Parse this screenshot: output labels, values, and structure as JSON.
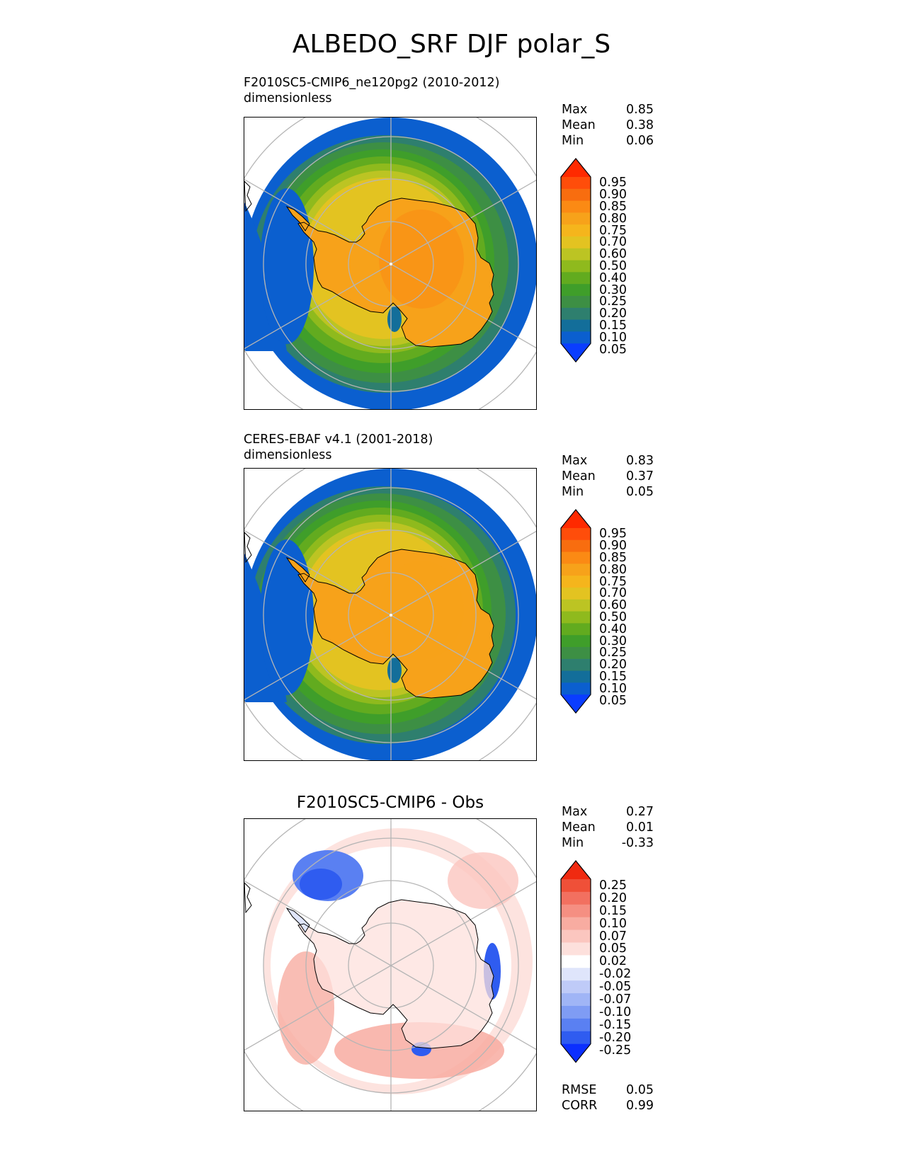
{
  "title": "ALBEDO_SRF DJF polar_S",
  "panels": [
    {
      "subtitle_line1": "F2010SC5-CMIP6_ne120pg2 (2010-2012)",
      "subtitle_line2": "dimensionless",
      "stats": [
        {
          "label": "Max",
          "value": "0.85"
        },
        {
          "label": "Mean",
          "value": "0.38"
        },
        {
          "label": "Min",
          "value": "0.06"
        }
      ],
      "colorbar_labels": [
        "0.95",
        "0.90",
        "0.85",
        "0.80",
        "0.75",
        "0.70",
        "0.60",
        "0.50",
        "0.40",
        "0.30",
        "0.25",
        "0.20",
        "0.15",
        "0.10",
        "0.05"
      ]
    },
    {
      "subtitle_line1": "CERES-EBAF v4.1 (2001-2018)",
      "subtitle_line2": "dimensionless",
      "stats": [
        {
          "label": "Max",
          "value": "0.83"
        },
        {
          "label": "Mean",
          "value": "0.37"
        },
        {
          "label": "Min",
          "value": "0.05"
        }
      ],
      "colorbar_labels": [
        "0.95",
        "0.90",
        "0.85",
        "0.80",
        "0.75",
        "0.70",
        "0.60",
        "0.50",
        "0.40",
        "0.30",
        "0.25",
        "0.20",
        "0.15",
        "0.10",
        "0.05"
      ]
    },
    {
      "subtitle": "F2010SC5-CMIP6 - Obs",
      "stats": [
        {
          "label": "Max",
          "value": "0.27"
        },
        {
          "label": "Mean",
          "value": "0.01"
        },
        {
          "label": "Min",
          "value": "-0.33"
        }
      ],
      "colorbar_labels": [
        "0.25",
        "0.20",
        "0.15",
        "0.10",
        "0.07",
        "0.05",
        "0.02",
        "-0.02",
        "-0.05",
        "-0.07",
        "-0.10",
        "-0.15",
        "-0.20",
        "-0.25"
      ],
      "metrics": [
        {
          "label": "RMSE",
          "value": "0.05"
        },
        {
          "label": "CORR",
          "value": "0.99"
        }
      ]
    }
  ],
  "chart_data": [
    {
      "type": "heatmap",
      "title": "F2010SC5-CMIP6_ne120pg2 (2010-2012)",
      "units": "dimensionless",
      "projection": "south polar stereographic",
      "levels": [
        0.05,
        0.1,
        0.15,
        0.2,
        0.25,
        0.3,
        0.4,
        0.5,
        0.6,
        0.7,
        0.75,
        0.8,
        0.85,
        0.9,
        0.95
      ],
      "colors": [
        "#0a3dff",
        "#0b5fcf",
        "#136e9a",
        "#2e7f6e",
        "#3d8f44",
        "#3f9e2a",
        "#62ab1f",
        "#8fba1d",
        "#bcc423",
        "#e3c321",
        "#f5b51c",
        "#f7a21a",
        "#fb8a14",
        "#f86d0f",
        "#ff4d0a",
        "#ff2a00"
      ],
      "max": 0.85,
      "mean": 0.38,
      "min": 0.06
    },
    {
      "type": "heatmap",
      "title": "CERES-EBAF v4.1 (2001-2018)",
      "units": "dimensionless",
      "projection": "south polar stereographic",
      "levels": [
        0.05,
        0.1,
        0.15,
        0.2,
        0.25,
        0.3,
        0.4,
        0.5,
        0.6,
        0.7,
        0.75,
        0.8,
        0.85,
        0.9,
        0.95
      ],
      "max": 0.83,
      "mean": 0.37,
      "min": 0.05
    },
    {
      "type": "heatmap",
      "title": "F2010SC5-CMIP6 - Obs",
      "projection": "south polar stereographic",
      "levels": [
        -0.25,
        -0.2,
        -0.15,
        -0.1,
        -0.07,
        -0.05,
        -0.02,
        0.02,
        0.05,
        0.07,
        0.1,
        0.15,
        0.2,
        0.25
      ],
      "colors": [
        "#0b2fff",
        "#2f5cf0",
        "#5a80f2",
        "#7f9cf4",
        "#a0b5f6",
        "#bfcbf8",
        "#dfe5fb",
        "#ffffff",
        "#fde0dc",
        "#fbc6bf",
        "#f8aca1",
        "#f58f82",
        "#f27060",
        "#ef5038",
        "#f02a10"
      ],
      "max": 0.27,
      "mean": 0.01,
      "min": -0.33,
      "rmse": 0.05,
      "corr": 0.99
    }
  ]
}
